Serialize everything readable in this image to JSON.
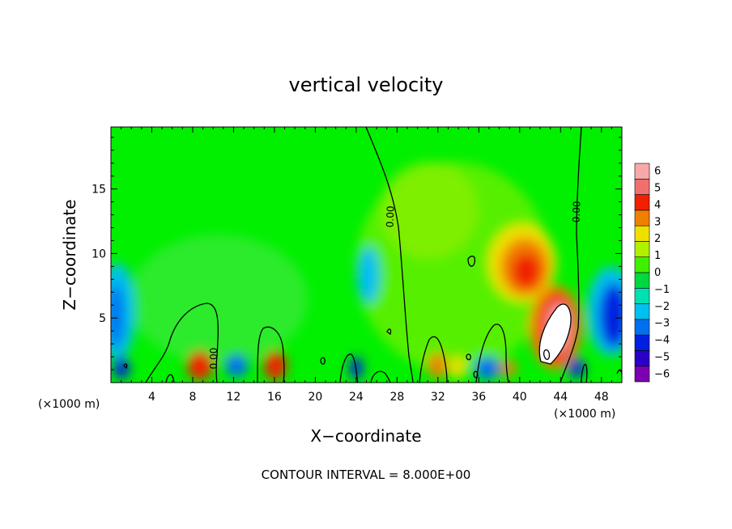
{
  "chart_data": {
    "type": "heatmap",
    "title": "vertical velocity",
    "xlabel": "X−coordinate",
    "ylabel": "Z−coordinate",
    "x_units_left": "(×1000 m)",
    "x_units_right": "(×1000 m)",
    "footer": "CONTOUR INTERVAL = 8.000E+00",
    "xlim": [
      0,
      50
    ],
    "ylim": [
      0,
      19.8
    ],
    "x_ticks": [
      4,
      8,
      12,
      16,
      20,
      24,
      28,
      32,
      36,
      40,
      44,
      48
    ],
    "x_tick_labels": [
      "4",
      "8",
      "12",
      "16",
      "20",
      "24",
      "28",
      "32",
      "36",
      "40",
      "44",
      "48"
    ],
    "y_ticks": [
      5,
      10,
      15
    ],
    "y_tick_labels": [
      "5",
      "10",
      "15"
    ],
    "colorbar": {
      "levels": [
        -6,
        -5,
        -4,
        -3,
        -2,
        -1,
        0,
        1,
        2,
        3,
        4,
        5,
        6
      ],
      "labels": [
        "−6",
        "−5",
        "−4",
        "−3",
        "−2",
        "−1",
        "0",
        "1",
        "2",
        "3",
        "4",
        "5",
        "6"
      ],
      "colors": [
        "#7a00b0",
        "#2a00c8",
        "#0020e0",
        "#0070f0",
        "#00c0f0",
        "#00e0b0",
        "#00d840",
        "#40f000",
        "#b0f000",
        "#f0e000",
        "#f08000",
        "#f02000",
        "#f07070",
        "#f8a8a8"
      ]
    },
    "contour_labels": [
      "0.00",
      "0.00",
      "0.00",
      "0.00"
    ],
    "features": [
      {
        "kind": "updraft",
        "x": 41,
        "z": 9,
        "w": 4
      },
      {
        "kind": "updraft",
        "x": 43.5,
        "z": 4.5,
        "w": 6.5
      },
      {
        "kind": "updraft",
        "x": 16,
        "z": 1.2,
        "w": 4
      },
      {
        "kind": "updraft",
        "x": 8.5,
        "z": 1.2,
        "w": 4
      },
      {
        "kind": "downdraft",
        "x": 48.5,
        "z": 5,
        "w": -4
      },
      {
        "kind": "downdraft",
        "x": 25,
        "z": 8,
        "w": -2
      },
      {
        "kind": "downdraft",
        "x": 1,
        "z": 5.5,
        "w": -2.5
      },
      {
        "kind": "downdraft",
        "x": 37,
        "z": 1.2,
        "w": -4.5
      },
      {
        "kind": "downdraft",
        "x": 46,
        "z": 1.2,
        "w": -4
      }
    ]
  }
}
